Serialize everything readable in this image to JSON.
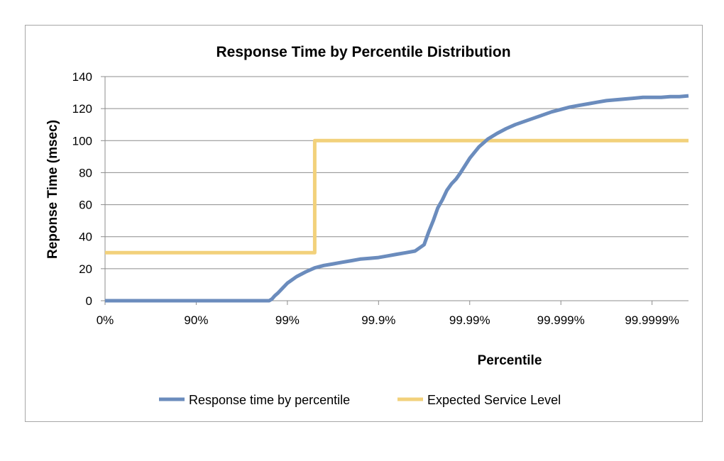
{
  "chart_data": {
    "type": "line",
    "title": "Response Time by Percentile Distribution",
    "xlabel": "Percentile",
    "ylabel": "Reponse Time (msec)",
    "x_tick_labels": [
      "0%",
      "90%",
      "99%",
      "99.9%",
      "99.99%",
      "99.999%",
      "99.9999%"
    ],
    "x_tick_positions": [
      0,
      1,
      2,
      3,
      4,
      5,
      6
    ],
    "xlim": [
      0,
      6.4
    ],
    "ylim": [
      0,
      140
    ],
    "yticks": [
      0,
      20,
      40,
      60,
      80,
      100,
      120,
      140
    ],
    "grid": true,
    "legend_position": "bottom",
    "series": [
      {
        "name": "Response time by percentile",
        "color": "#6b8cbd",
        "x": [
          0,
          1,
          1.8,
          1.83,
          1.86,
          1.9,
          1.95,
          2.0,
          2.05,
          2.1,
          2.2,
          2.3,
          2.4,
          2.5,
          2.6,
          2.7,
          2.8,
          2.9,
          3.0,
          3.1,
          3.2,
          3.3,
          3.4,
          3.5,
          3.55,
          3.6,
          3.65,
          3.7,
          3.75,
          3.8,
          3.85,
          3.9,
          4.0,
          4.1,
          4.2,
          4.3,
          4.4,
          4.5,
          4.6,
          4.7,
          4.8,
          4.9,
          5.0,
          5.1,
          5.2,
          5.3,
          5.4,
          5.5,
          5.6,
          5.7,
          5.8,
          5.9,
          6.0,
          6.1,
          6.2,
          6.3,
          6.4
        ],
        "y": [
          0,
          0,
          0,
          1,
          3,
          5,
          8,
          11,
          13,
          15,
          18,
          20.5,
          22,
          23,
          24,
          25,
          26,
          26.5,
          27,
          28,
          29,
          30,
          31,
          35,
          43,
          50,
          58,
          63,
          69,
          73,
          76,
          80,
          89,
          96,
          101,
          104.5,
          107.5,
          110,
          112,
          114,
          116,
          118,
          119.5,
          121,
          122,
          123,
          124,
          125,
          125.5,
          126,
          126.5,
          127,
          127,
          127,
          127.5,
          127.5,
          128
        ]
      },
      {
        "name": "Expected Service Level",
        "color": "#f2d17b",
        "x": [
          0,
          2.3,
          2.3,
          6.4
        ],
        "y": [
          30,
          30,
          100,
          100
        ]
      }
    ]
  }
}
